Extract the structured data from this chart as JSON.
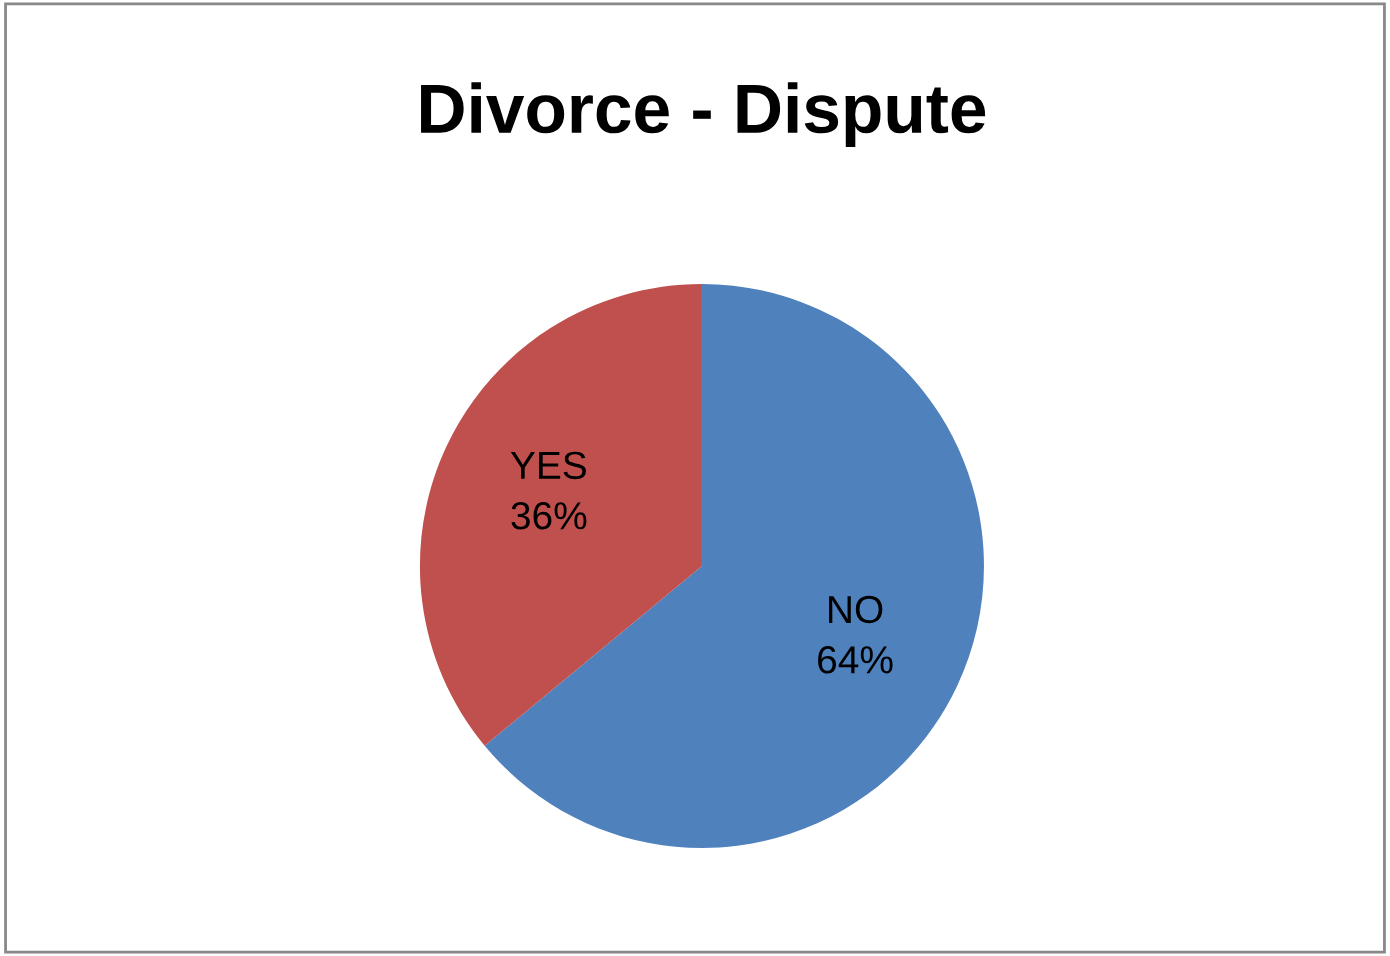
{
  "chart_data": {
    "type": "pie",
    "title": "Divorce - Dispute",
    "categories": [
      "NO",
      "YES"
    ],
    "values": [
      64,
      36
    ],
    "value_labels": [
      "64%",
      "36%"
    ],
    "colors": [
      "#4f81bd",
      "#c0504d"
    ]
  }
}
